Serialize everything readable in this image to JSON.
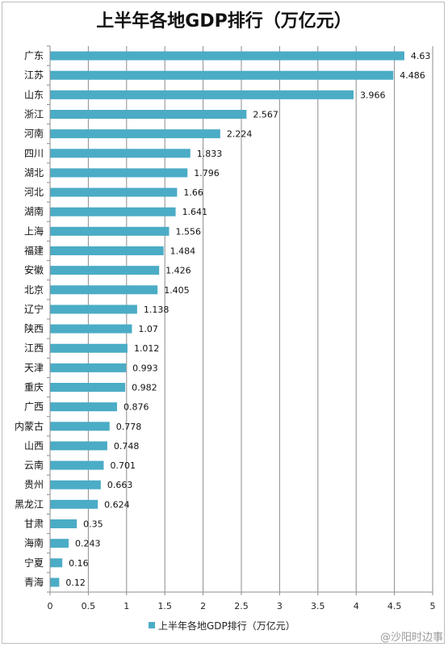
{
  "chart_data": {
    "type": "bar",
    "orientation": "horizontal",
    "title": "上半年各地GDP排行（万亿元）",
    "categories": [
      "广东",
      "江苏",
      "山东",
      "浙江",
      "河南",
      "四川",
      "湖北",
      "河北",
      "湖南",
      "上海",
      "福建",
      "安徽",
      "北京",
      "辽宁",
      "陕西",
      "江西",
      "天津",
      "重庆",
      "广西",
      "内蒙古",
      "山西",
      "云南",
      "贵州",
      "黑龙江",
      "甘肃",
      "海南",
      "宁夏",
      "青海"
    ],
    "series": [
      {
        "name": "上半年各地GDP排行（万亿元）",
        "values": [
          4.63,
          4.486,
          3.966,
          2.567,
          2.224,
          1.833,
          1.796,
          1.66,
          1.641,
          1.556,
          1.484,
          1.426,
          1.405,
          1.138,
          1.07,
          1.012,
          0.993,
          0.982,
          0.876,
          0.778,
          0.748,
          0.701,
          0.663,
          0.624,
          0.35,
          0.243,
          0.16,
          0.12
        ],
        "value_labels": [
          "4.63",
          "4.486",
          "3.966",
          "2.567",
          "2.224",
          "1.833",
          "1.796",
          "1.66",
          "1.641",
          "1.556",
          "1.484",
          "1.426",
          "1.405",
          "1.138",
          "1.07",
          "1.012",
          "0.993",
          "0.982",
          "0.876",
          "0.778",
          "0.748",
          "0.701",
          "0.663",
          "0.624",
          "0.35",
          "0.243",
          "0.16",
          "0.12"
        ],
        "color": "#4BACC6"
      }
    ],
    "xlim": [
      0,
      5
    ],
    "xticks": [
      "0",
      "0.5",
      "1",
      "1.5",
      "2",
      "2.5",
      "3",
      "3.5",
      "4",
      "4.5",
      "5"
    ],
    "grid": true,
    "legend_position": "bottom"
  },
  "watermark": "@沙阳时边事"
}
